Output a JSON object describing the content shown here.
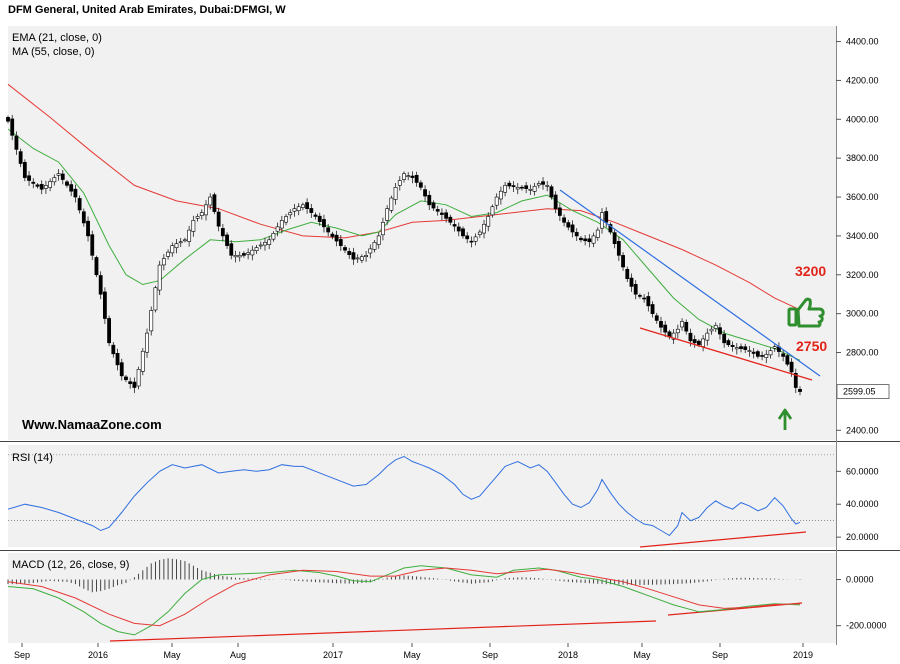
{
  "header": {
    "title": "DFM General, United Arab Emirates, Dubai:DFMGI, W"
  },
  "watermark": "Www.NamaaZone.com",
  "colors": {
    "ema": "#3fae3f",
    "ma": "#e53935",
    "rsi": "#2f6fe0",
    "macd_signal": "#e53935",
    "trend_blue": "#2f6fe0",
    "trend_red": "#e2231a",
    "panel_bg": "#f1f1f1",
    "thumb": "#2f8f2f",
    "arrow": "#2f8f2f"
  },
  "icons": {
    "thumb": "thumbs-up-icon",
    "arrow": "up-arrow-icon"
  },
  "annotations": {
    "level_high": "3200",
    "level_low": "2750"
  },
  "chart_data": [
    {
      "type": "candlestick",
      "title": "DFM General, United Arab Emirates, Dubai:DFMGI, W",
      "legend": [
        "EMA (21, close, 0)",
        "MA (55, close, 0)"
      ],
      "x_tick_labels": [
        "Sep",
        "2016",
        "May",
        "Aug",
        "2017",
        "May",
        "Sep",
        "2018",
        "May",
        "Sep",
        "2019"
      ],
      "y_ticks": [
        "4400.00",
        "4200.00",
        "4000.00",
        "3800.00",
        "3600.00",
        "3400.00",
        "3200.00",
        "3000.00",
        "2800.00",
        "2400.00"
      ],
      "ylim": [
        2350,
        4480
      ],
      "last_price": "2599.05",
      "close_path": [
        [
          0,
          3990
        ],
        [
          4,
          3700
        ],
        [
          8,
          3640
        ],
        [
          12,
          3720
        ],
        [
          16,
          3600
        ],
        [
          19,
          3400
        ],
        [
          22,
          3100
        ],
        [
          24,
          2850
        ],
        [
          27,
          2680
        ],
        [
          30,
          2620
        ],
        [
          33,
          2900
        ],
        [
          36,
          3250
        ],
        [
          39,
          3350
        ],
        [
          42,
          3380
        ],
        [
          44,
          3480
        ],
        [
          46,
          3520
        ],
        [
          48,
          3600
        ],
        [
          50,
          3450
        ],
        [
          53,
          3300
        ],
        [
          56,
          3300
        ],
        [
          59,
          3340
        ],
        [
          62,
          3380
        ],
        [
          65,
          3480
        ],
        [
          68,
          3540
        ],
        [
          70,
          3560
        ],
        [
          73,
          3500
        ],
        [
          76,
          3420
        ],
        [
          79,
          3350
        ],
        [
          82,
          3280
        ],
        [
          85,
          3300
        ],
        [
          88,
          3400
        ],
        [
          90,
          3540
        ],
        [
          92,
          3650
        ],
        [
          94,
          3720
        ],
        [
          96,
          3700
        ],
        [
          98,
          3650
        ],
        [
          100,
          3560
        ],
        [
          103,
          3510
        ],
        [
          106,
          3450
        ],
        [
          108,
          3400
        ],
        [
          110,
          3370
        ],
        [
          112,
          3420
        ],
        [
          114,
          3500
        ],
        [
          116,
          3600
        ],
        [
          118,
          3660
        ],
        [
          121,
          3650
        ],
        [
          124,
          3640
        ],
        [
          126,
          3670
        ],
        [
          128,
          3660
        ],
        [
          130,
          3540
        ],
        [
          132,
          3470
        ],
        [
          134,
          3420
        ],
        [
          136,
          3380
        ],
        [
          138,
          3370
        ],
        [
          140,
          3430
        ],
        [
          141,
          3520
        ],
        [
          143,
          3420
        ],
        [
          145,
          3300
        ],
        [
          147,
          3180
        ],
        [
          149,
          3100
        ],
        [
          151,
          3080
        ],
        [
          153,
          3000
        ],
        [
          155,
          2930
        ],
        [
          157,
          2880
        ],
        [
          159,
          2920
        ],
        [
          160,
          2960
        ],
        [
          162,
          2860
        ],
        [
          164,
          2840
        ],
        [
          166,
          2900
        ],
        [
          168,
          2940
        ],
        [
          170,
          2850
        ],
        [
          172,
          2830
        ],
        [
          174,
          2820
        ],
        [
          176,
          2810
        ],
        [
          178,
          2780
        ],
        [
          180,
          2790
        ],
        [
          182,
          2830
        ],
        [
          184,
          2780
        ],
        [
          186,
          2700
        ],
        [
          187,
          2620
        ],
        [
          188,
          2599
        ]
      ],
      "ema_path": [
        [
          0,
          3950
        ],
        [
          6,
          3850
        ],
        [
          12,
          3780
        ],
        [
          18,
          3620
        ],
        [
          24,
          3350
        ],
        [
          28,
          3200
        ],
        [
          32,
          3150
        ],
        [
          36,
          3170
        ],
        [
          42,
          3280
        ],
        [
          48,
          3380
        ],
        [
          54,
          3370
        ],
        [
          60,
          3380
        ],
        [
          66,
          3430
        ],
        [
          72,
          3470
        ],
        [
          78,
          3440
        ],
        [
          84,
          3400
        ],
        [
          88,
          3420
        ],
        [
          92,
          3510
        ],
        [
          98,
          3580
        ],
        [
          104,
          3560
        ],
        [
          110,
          3500
        ],
        [
          116,
          3520
        ],
        [
          122,
          3580
        ],
        [
          128,
          3610
        ],
        [
          134,
          3530
        ],
        [
          140,
          3470
        ],
        [
          146,
          3380
        ],
        [
          152,
          3230
        ],
        [
          158,
          3080
        ],
        [
          164,
          2970
        ],
        [
          170,
          2900
        ],
        [
          176,
          2860
        ],
        [
          182,
          2820
        ],
        [
          188,
          2760
        ]
      ],
      "ma_path": [
        [
          0,
          4180
        ],
        [
          10,
          4010
        ],
        [
          20,
          3830
        ],
        [
          30,
          3660
        ],
        [
          40,
          3580
        ],
        [
          50,
          3540
        ],
        [
          60,
          3460
        ],
        [
          70,
          3400
        ],
        [
          80,
          3390
        ],
        [
          88,
          3420
        ],
        [
          96,
          3470
        ],
        [
          104,
          3480
        ],
        [
          112,
          3500
        ],
        [
          120,
          3520
        ],
        [
          128,
          3540
        ],
        [
          136,
          3530
        ],
        [
          144,
          3470
        ],
        [
          152,
          3400
        ],
        [
          160,
          3330
        ],
        [
          168,
          3250
        ],
        [
          176,
          3160
        ],
        [
          182,
          3080
        ],
        [
          188,
          3020
        ]
      ]
    },
    {
      "type": "line",
      "legend": [
        "RSI (14)"
      ],
      "y_ticks": [
        "60.0000",
        "40.0000",
        "20.0000"
      ],
      "ylim": [
        14,
        76
      ],
      "reference_levels": [
        70,
        30
      ],
      "values": [
        [
          0,
          37
        ],
        [
          4,
          40
        ],
        [
          8,
          38
        ],
        [
          12,
          35
        ],
        [
          16,
          31
        ],
        [
          20,
          27
        ],
        [
          22,
          24
        ],
        [
          24,
          26
        ],
        [
          27,
          35
        ],
        [
          30,
          45
        ],
        [
          33,
          53
        ],
        [
          36,
          60
        ],
        [
          39,
          64
        ],
        [
          42,
          62
        ],
        [
          46,
          64
        ],
        [
          50,
          59
        ],
        [
          53,
          60
        ],
        [
          56,
          61
        ],
        [
          59,
          60
        ],
        [
          62,
          61
        ],
        [
          65,
          64
        ],
        [
          68,
          63
        ],
        [
          70,
          63
        ],
        [
          73,
          60
        ],
        [
          76,
          57
        ],
        [
          79,
          54
        ],
        [
          82,
          51
        ],
        [
          85,
          52
        ],
        [
          88,
          58
        ],
        [
          90,
          63
        ],
        [
          92,
          67
        ],
        [
          94,
          69
        ],
        [
          96,
          66
        ],
        [
          98,
          64
        ],
        [
          100,
          62
        ],
        [
          103,
          58
        ],
        [
          106,
          52
        ],
        [
          108,
          46
        ],
        [
          110,
          43
        ],
        [
          112,
          45
        ],
        [
          114,
          51
        ],
        [
          116,
          57
        ],
        [
          118,
          63
        ],
        [
          121,
          66
        ],
        [
          124,
          62
        ],
        [
          126,
          64
        ],
        [
          128,
          60
        ],
        [
          130,
          53
        ],
        [
          132,
          46
        ],
        [
          134,
          40
        ],
        [
          136,
          38
        ],
        [
          138,
          41
        ],
        [
          140,
          49
        ],
        [
          141,
          55
        ],
        [
          143,
          47
        ],
        [
          145,
          40
        ],
        [
          147,
          35
        ],
        [
          149,
          31
        ],
        [
          151,
          28
        ],
        [
          153,
          27
        ],
        [
          155,
          24
        ],
        [
          157,
          21
        ],
        [
          159,
          27
        ],
        [
          160,
          35
        ],
        [
          162,
          30
        ],
        [
          164,
          32
        ],
        [
          166,
          38
        ],
        [
          168,
          42
        ],
        [
          170,
          39
        ],
        [
          172,
          37
        ],
        [
          174,
          41
        ],
        [
          176,
          39
        ],
        [
          178,
          36
        ],
        [
          180,
          38
        ],
        [
          182,
          44
        ],
        [
          184,
          39
        ],
        [
          186,
          31
        ],
        [
          187,
          28
        ],
        [
          188,
          29
        ]
      ]
    },
    {
      "type": "line",
      "legend": [
        "MACD (12, 26, close, 9)"
      ],
      "y_ticks": [
        "0.0000",
        "-200.0000"
      ],
      "ylim": [
        -275,
        115
      ],
      "macd": [
        [
          0,
          -30
        ],
        [
          6,
          -40
        ],
        [
          12,
          -80
        ],
        [
          18,
          -140
        ],
        [
          22,
          -190
        ],
        [
          26,
          -225
        ],
        [
          30,
          -240
        ],
        [
          34,
          -200
        ],
        [
          38,
          -140
        ],
        [
          42,
          -60
        ],
        [
          46,
          0
        ],
        [
          50,
          20
        ],
        [
          56,
          25
        ],
        [
          62,
          30
        ],
        [
          68,
          40
        ],
        [
          74,
          30
        ],
        [
          78,
          15
        ],
        [
          82,
          -5
        ],
        [
          86,
          -10
        ],
        [
          90,
          20
        ],
        [
          94,
          50
        ],
        [
          98,
          60
        ],
        [
          104,
          50
        ],
        [
          110,
          20
        ],
        [
          116,
          10
        ],
        [
          120,
          40
        ],
        [
          126,
          50
        ],
        [
          130,
          40
        ],
        [
          136,
          10
        ],
        [
          140,
          0
        ],
        [
          146,
          -30
        ],
        [
          152,
          -70
        ],
        [
          158,
          -110
        ],
        [
          164,
          -140
        ],
        [
          170,
          -130
        ],
        [
          176,
          -115
        ],
        [
          182,
          -105
        ],
        [
          188,
          -110
        ]
      ],
      "signal": [
        [
          0,
          -10
        ],
        [
          8,
          -30
        ],
        [
          16,
          -80
        ],
        [
          24,
          -150
        ],
        [
          30,
          -190
        ],
        [
          36,
          -200
        ],
        [
          42,
          -150
        ],
        [
          48,
          -80
        ],
        [
          54,
          -20
        ],
        [
          62,
          20
        ],
        [
          70,
          40
        ],
        [
          78,
          35
        ],
        [
          86,
          15
        ],
        [
          92,
          15
        ],
        [
          98,
          40
        ],
        [
          104,
          50
        ],
        [
          110,
          40
        ],
        [
          116,
          25
        ],
        [
          122,
          35
        ],
        [
          128,
          45
        ],
        [
          134,
          30
        ],
        [
          140,
          10
        ],
        [
          146,
          -10
        ],
        [
          152,
          -40
        ],
        [
          158,
          -75
        ],
        [
          164,
          -110
        ],
        [
          170,
          -125
        ],
        [
          176,
          -120
        ],
        [
          182,
          -108
        ],
        [
          188,
          -105
        ]
      ],
      "histogram": [
        [
          0,
          -20
        ],
        [
          2,
          -20
        ],
        [
          4,
          -18
        ],
        [
          6,
          -15
        ],
        [
          8,
          -10
        ],
        [
          10,
          -6
        ],
        [
          14,
          -10
        ],
        [
          16,
          -20
        ],
        [
          18,
          -40
        ],
        [
          20,
          -55
        ],
        [
          22,
          -50
        ],
        [
          24,
          -40
        ],
        [
          26,
          -25
        ],
        [
          28,
          -15
        ],
        [
          30,
          10
        ],
        [
          32,
          40
        ],
        [
          34,
          70
        ],
        [
          36,
          85
        ],
        [
          38,
          92
        ],
        [
          40,
          88
        ],
        [
          42,
          80
        ],
        [
          44,
          60
        ],
        [
          46,
          40
        ],
        [
          48,
          30
        ],
        [
          50,
          18
        ],
        [
          54,
          8
        ],
        [
          58,
          4
        ],
        [
          62,
          2
        ],
        [
          66,
          -2
        ],
        [
          70,
          -8
        ],
        [
          74,
          -12
        ],
        [
          78,
          -16
        ],
        [
          82,
          -18
        ],
        [
          86,
          -12
        ],
        [
          90,
          8
        ],
        [
          94,
          18
        ],
        [
          98,
          12
        ],
        [
          102,
          4
        ],
        [
          106,
          -8
        ],
        [
          110,
          -18
        ],
        [
          114,
          -12
        ],
        [
          118,
          6
        ],
        [
          122,
          10
        ],
        [
          126,
          6
        ],
        [
          130,
          -4
        ],
        [
          134,
          -12
        ],
        [
          138,
          -16
        ],
        [
          142,
          -20
        ],
        [
          146,
          -22
        ],
        [
          150,
          -24
        ],
        [
          154,
          -22
        ],
        [
          158,
          -20
        ],
        [
          162,
          -16
        ],
        [
          166,
          -8
        ],
        [
          170,
          4
        ],
        [
          174,
          8
        ],
        [
          178,
          6
        ],
        [
          182,
          4
        ],
        [
          186,
          0
        ],
        [
          188,
          -2
        ]
      ]
    }
  ]
}
